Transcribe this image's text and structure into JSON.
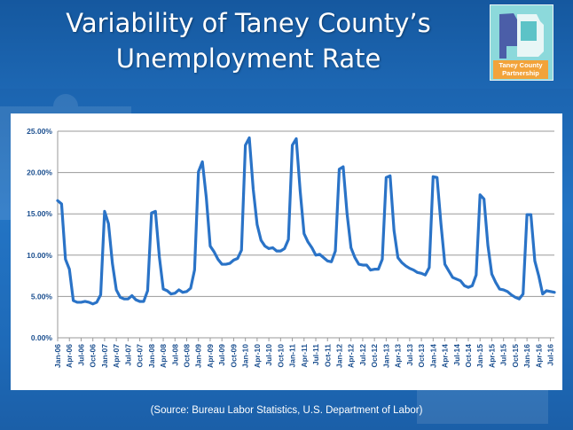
{
  "slide": {
    "title_line1": "Variability of Taney County’s",
    "title_line2": "Unemployment Rate",
    "logo_text_line1": "Taney County",
    "logo_text_line2": "Partnership",
    "source": "(Source:  Bureau Labor Statistics, U.S. Department of Labor)"
  },
  "colors": {
    "background": "#1f6cb8",
    "line": "#2a73c7",
    "logo_bg": "#7fd3d6",
    "logo_label": "#f2a33a"
  },
  "chart_data": {
    "type": "line",
    "title": "",
    "xlabel": "",
    "ylabel": "",
    "ylim": [
      0,
      25
    ],
    "y_ticks": [
      "0.00%",
      "5.00%",
      "10.00%",
      "15.00%",
      "20.00%",
      "25.00%"
    ],
    "grid": true,
    "legend": "none",
    "x_tick_labels": [
      "Jan-06",
      "Apr-06",
      "Jul-06",
      "Oct-06",
      "Jan-07",
      "Apr-07",
      "Jul-07",
      "Oct-07",
      "Jan-08",
      "Apr-08",
      "Jul-08",
      "Oct-08",
      "Jan-09",
      "Apr-09",
      "Jul-09",
      "Oct-09",
      "Jan-10",
      "Apr-10",
      "Jul-10",
      "Oct-10",
      "Jan-11",
      "Apr-11",
      "Jul-11",
      "Oct-11",
      "Jan-12",
      "Apr-12",
      "Jul-12",
      "Oct-12",
      "Jan-13",
      "Apr-13",
      "Jul-13",
      "Oct-13",
      "Jan-14",
      "Apr-14",
      "Jul-14",
      "Oct-14",
      "Jan-15",
      "Apr-15",
      "Jul-15",
      "Oct-15",
      "Jan-16",
      "Apr-16",
      "Jul-16"
    ],
    "series": [
      {
        "start_month": "Jan-06",
        "values": [
          16.6,
          16.2,
          9.5,
          8.3,
          4.5,
          4.3,
          4.3,
          4.4,
          4.3,
          4.1,
          4.3,
          5.2,
          15.3,
          13.8,
          9.0,
          5.8,
          4.9,
          4.7,
          4.7,
          5.1,
          4.6,
          4.4,
          4.4,
          5.7,
          15.1,
          15.3,
          9.8,
          5.9,
          5.7,
          5.3,
          5.4,
          5.8,
          5.5,
          5.6,
          6.0,
          8.2,
          20.1,
          21.3,
          17.0,
          11.1,
          10.4,
          9.5,
          8.9,
          8.9,
          9.0,
          9.4,
          9.6,
          10.6,
          23.3,
          24.2,
          18.0,
          13.7,
          11.8,
          11.1,
          10.8,
          10.9,
          10.5,
          10.5,
          10.8,
          11.9,
          23.3,
          24.1,
          17.8,
          12.6,
          11.6,
          10.9,
          10.0,
          10.1,
          9.7,
          9.3,
          9.2,
          10.5,
          20.4,
          20.7,
          15.0,
          10.9,
          9.7,
          8.9,
          8.8,
          8.8,
          8.2,
          8.3,
          8.3,
          9.5,
          19.4,
          19.6,
          13.0,
          9.7,
          9.1,
          8.7,
          8.4,
          8.2,
          7.9,
          7.8,
          7.6,
          8.5,
          19.5,
          19.4,
          13.8,
          8.9,
          8.1,
          7.3,
          7.1,
          6.9,
          6.3,
          6.1,
          6.3,
          7.6,
          17.3,
          16.8,
          11.2,
          7.7,
          6.7,
          5.9,
          5.8,
          5.6,
          5.2,
          4.9,
          4.7,
          5.3,
          14.9,
          14.9,
          9.3,
          7.5,
          5.3,
          5.7,
          5.6,
          5.5
        ]
      }
    ]
  }
}
